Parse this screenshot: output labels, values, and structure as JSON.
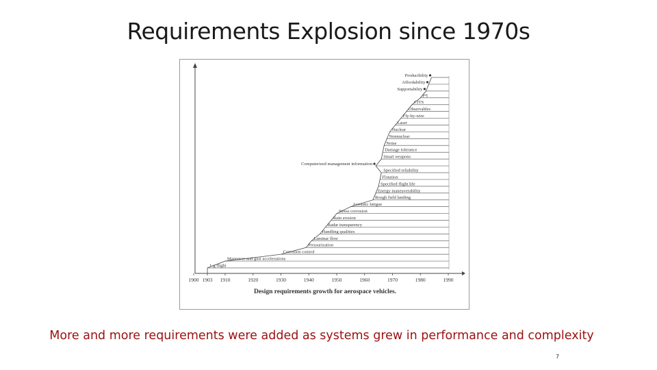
{
  "slide": {
    "title": "Requirements Explosion since 1970s",
    "caption": "More and more  requirements were  added as systems  grew in performance  and complexity",
    "page_number": "7"
  },
  "figure": {
    "caption": "Design requirements growth for aerospace vehicles.",
    "x_ticks": [
      "1900",
      "1903",
      "1910",
      "1920",
      "1930",
      "1940",
      "1950",
      "1960",
      "1970",
      "1980",
      "1990"
    ],
    "requirements": [
      {
        "label": "1-g flight",
        "year": 1903,
        "dot": false
      },
      {
        "label": "Maneuver and gust accelerations",
        "year": 1910,
        "dot": false
      },
      {
        "label": "Corrosion control",
        "year": 1930,
        "dot": false
      },
      {
        "label": "Pressurization",
        "year": 1939,
        "dot": false
      },
      {
        "label": "Laminar flow",
        "year": 1941,
        "dot": false
      },
      {
        "label": "Handling qualities",
        "year": 1944,
        "dot": false
      },
      {
        "label": "Radar transparency",
        "year": 1946,
        "dot": false
      },
      {
        "label": "Rain erosion",
        "year": 1948,
        "dot": false
      },
      {
        "label": "Stress corrosion",
        "year": 1950,
        "dot": false
      },
      {
        "label": "Acoustic fatigue",
        "year": 1955,
        "dot": false
      },
      {
        "label": "Rough field landing",
        "year": 1963,
        "dot": false
      },
      {
        "label": "Energy maneuverability",
        "year": 1964,
        "dot": false
      },
      {
        "label": "Specified flight life",
        "year": 1965,
        "dot": false
      },
      {
        "label": "Flotation",
        "year": 1965.5,
        "dot": false
      },
      {
        "label": "Specified reliability",
        "year": 1966,
        "dot": false
      },
      {
        "label": "Computerized management information",
        "year": 1964,
        "dot": true
      },
      {
        "label": "Smart weapons",
        "year": 1966,
        "dot": false
      },
      {
        "label": "Damage tolerance",
        "year": 1966.5,
        "dot": false
      },
      {
        "label": "Noise",
        "year": 1967,
        "dot": false
      },
      {
        "label": "Nonnuclear",
        "year": 1968,
        "dot": false
      },
      {
        "label": "Nuclear",
        "year": 1969,
        "dot": false
      },
      {
        "label": "Laser",
        "year": 1971,
        "dot": false
      },
      {
        "label": "Fly-by-wire",
        "year": 1973,
        "dot": false
      },
      {
        "label": "Observables",
        "year": 1975,
        "dot": false
      },
      {
        "label": "CITS",
        "year": 1977,
        "dot": false
      },
      {
        "label": "P³I",
        "year": 1980,
        "dot": false
      },
      {
        "label": "Supportability",
        "year": 1982,
        "dot": true
      },
      {
        "label": "Affordability",
        "year": 1983,
        "dot": true
      },
      {
        "label": "Producibility",
        "year": 1984,
        "dot": true
      }
    ]
  }
}
